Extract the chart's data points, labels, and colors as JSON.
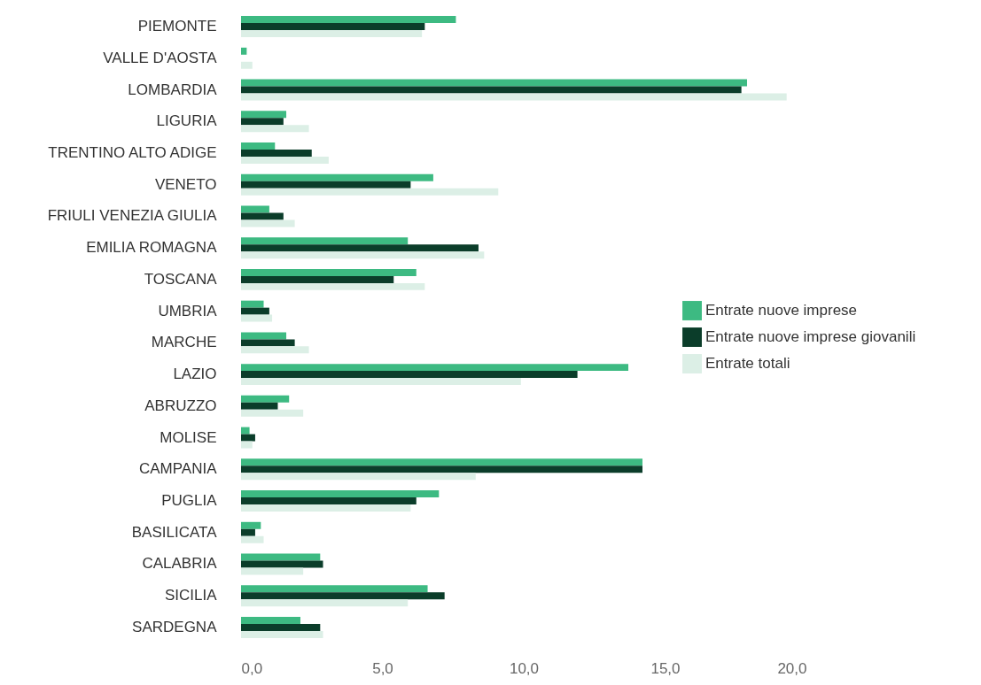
{
  "chart_data": {
    "type": "bar",
    "orientation": "horizontal",
    "categories": [
      "PIEMONTE",
      "VALLE D'AOSTA",
      "LOMBARDIA",
      "LIGURIA",
      "TRENTINO ALTO ADIGE",
      "VENETO",
      "FRIULI VENEZIA GIULIA",
      "EMILIA ROMAGNA",
      "TOSCANA",
      "UMBRIA",
      "MARCHE",
      "LAZIO",
      "ABRUZZO",
      "MOLISE",
      "CAMPANIA",
      "PUGLIA",
      "BASILICATA",
      "CALABRIA",
      "SICILIA",
      "SARDEGNA"
    ],
    "series": [
      {
        "name": "Entrate nuove imprese",
        "color": "#3dba82",
        "values": [
          7.6,
          0.2,
          17.9,
          1.6,
          1.2,
          6.8,
          1.0,
          5.9,
          6.2,
          0.8,
          1.6,
          13.7,
          1.7,
          0.3,
          14.2,
          7.0,
          0.7,
          2.8,
          6.6,
          2.1
        ]
      },
      {
        "name": "Entrate nuove imprese giovanili",
        "color": "#0b3d2a",
        "values": [
          6.5,
          0.0,
          17.7,
          1.5,
          2.5,
          6.0,
          1.5,
          8.4,
          5.4,
          1.0,
          1.9,
          11.9,
          1.3,
          0.5,
          14.2,
          6.2,
          0.5,
          2.9,
          7.2,
          2.8
        ]
      },
      {
        "name": "Entrate totali",
        "color": "#dcefe6",
        "values": [
          6.4,
          0.4,
          19.3,
          2.4,
          3.1,
          9.1,
          1.9,
          8.6,
          6.5,
          1.1,
          2.4,
          9.9,
          2.2,
          0.4,
          8.3,
          6.0,
          0.8,
          2.2,
          5.9,
          2.9
        ]
      }
    ],
    "xlim": [
      0,
      20
    ],
    "xticks": [
      {
        "value": 0,
        "label": "0,0"
      },
      {
        "value": 5,
        "label": "5,0"
      },
      {
        "value": 10,
        "label": "10,0"
      },
      {
        "value": 15,
        "label": "15,0"
      },
      {
        "value": 20,
        "label": "20,0"
      }
    ],
    "grid": false,
    "legend": "right"
  }
}
